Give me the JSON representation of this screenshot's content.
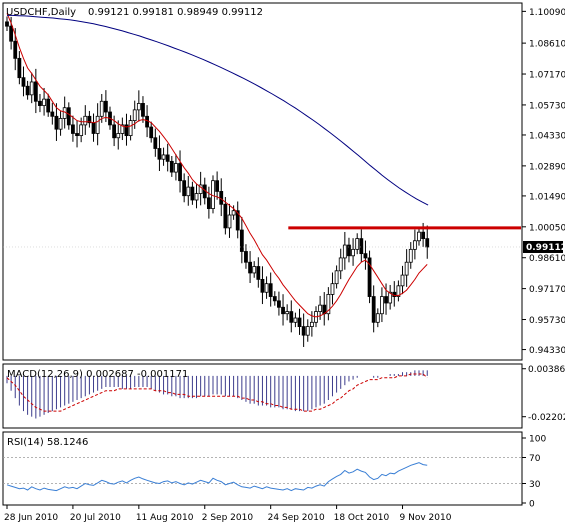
{
  "chart_data": [
    {
      "type": "candlestick",
      "symbol_label": "USDCHF,Daily",
      "ohlc_label": "0.99121 0.99181 0.98949 0.99112",
      "last_price_label": "0.99112",
      "y_ticks": [
        "1.10090",
        "1.08610",
        "1.07170",
        "1.05730",
        "1.04330",
        "1.02890",
        "1.01490",
        "1.00050",
        "0.98610",
        "0.97170",
        "0.95730",
        "0.94330"
      ],
      "y_tick_values": [
        1.1009,
        1.0861,
        1.0717,
        1.0573,
        1.0433,
        1.0289,
        1.0149,
        1.0005,
        0.9861,
        0.9717,
        0.9573,
        0.9433
      ],
      "ylim": [
        0.9403,
        1.1034
      ],
      "x_ticks": [
        "28 Jun 2010",
        "20 Jul 2010",
        "11 Aug 2010",
        "2 Sep 2010",
        "24 Sep 2010",
        "18 Oct 2010",
        "9 Nov 2010"
      ],
      "x_tick_index": [
        0,
        16,
        32,
        48,
        64,
        80,
        96
      ],
      "bar_count": 103,
      "series": [
        {
          "name": "USDCHF",
          "close": [
            1.094,
            1.087,
            1.079,
            1.07,
            1.066,
            1.062,
            1.068,
            1.059,
            1.057,
            1.06,
            1.054,
            1.052,
            1.046,
            1.051,
            1.056,
            1.048,
            1.044,
            1.043,
            1.048,
            1.052,
            1.049,
            1.044,
            1.052,
            1.059,
            1.054,
            1.048,
            1.042,
            1.044,
            1.048,
            1.043,
            1.05,
            1.055,
            1.058,
            1.052,
            1.047,
            1.042,
            1.037,
            1.032,
            1.034,
            1.031,
            1.026,
            1.03,
            1.022,
            1.015,
            1.019,
            1.013,
            1.016,
            1.02,
            1.014,
            1.009,
            1.022,
            1.017,
            1.011,
            1.0,
            1.006,
            1.008,
            0.999,
            0.989,
            0.984,
            0.979,
            0.982,
            0.976,
            0.97,
            0.974,
            0.968,
            0.966,
            0.963,
            0.96,
            0.961,
            0.956,
            0.958,
            0.954,
            0.95,
            0.954,
            0.956,
            0.961,
            0.964,
            0.96,
            0.969,
            0.974,
            0.98,
            0.986,
            0.992,
            0.987,
            0.99,
            0.995,
            0.988,
            0.986,
            0.968,
            0.956,
            0.96,
            0.968,
            0.965,
            0.97,
            0.968,
            0.973,
            0.978,
            0.984,
            0.99,
            0.994,
            0.998,
            0.995,
            0.9911
          ]
        },
        {
          "name": "MA fast",
          "values": [
            1.1,
            1.0955,
            1.09,
            1.084,
            1.079,
            1.0745,
            1.072,
            1.069,
            1.066,
            1.064,
            1.062,
            1.059,
            1.056,
            1.0545,
            1.054,
            1.053,
            1.0515,
            1.05,
            1.0495,
            1.0495,
            1.0495,
            1.049,
            1.0495,
            1.051,
            1.0515,
            1.051,
            1.05,
            1.0485,
            1.0475,
            1.047,
            1.0475,
            1.0485,
            1.05,
            1.0505,
            1.05,
            1.049,
            1.047,
            1.045,
            1.0425,
            1.04,
            1.037,
            1.034,
            1.031,
            1.028,
            1.0255,
            1.0225,
            1.0205,
            1.019,
            1.0175,
            1.016,
            1.015,
            1.0145,
            1.0135,
            1.012,
            1.0105,
            1.009,
            1.007,
            1.0045,
            1.001,
            0.9975,
            0.9945,
            0.991,
            0.9875,
            0.985,
            0.982,
            0.979,
            0.9765,
            0.9735,
            0.971,
            0.9685,
            0.966,
            0.964,
            0.962,
            0.96,
            0.959,
            0.9585,
            0.959,
            0.96,
            0.9615,
            0.9635,
            0.966,
            0.969,
            0.9725,
            0.976,
            0.979,
            0.982,
            0.984,
            0.985,
            0.983,
            0.98,
            0.977,
            0.974,
            0.971,
            0.9695,
            0.9685,
            0.9685,
            0.9695,
            0.971,
            0.9735,
            0.976,
            0.979,
            0.981,
            0.983
          ]
        },
        {
          "name": "MA slow",
          "values": [
            1.099,
            1.099,
            1.0989,
            1.0988,
            1.0986,
            1.0984,
            1.0982,
            1.098,
            1.0978,
            1.0975,
            1.0972,
            1.0969,
            1.0965,
            1.0961,
            1.0956,
            1.0951,
            1.0945,
            1.0939,
            1.0932,
            1.0925,
            1.0918,
            1.091,
            1.0902,
            1.0894,
            1.0885,
            1.0876,
            1.0867,
            1.0858,
            1.0848,
            1.0838,
            1.0828,
            1.0818,
            1.0807,
            1.0796,
            1.0785,
            1.0773,
            1.0761,
            1.0749,
            1.0736,
            1.0723,
            1.071,
            1.0697,
            1.0683,
            1.0669,
            1.0654,
            1.0639,
            1.0624,
            1.0608,
            1.0592,
            1.0575,
            1.0558,
            1.054,
            1.0522,
            1.0503,
            1.0484,
            1.0464,
            1.0444,
            1.0423,
            1.0402,
            1.038,
            1.0358,
            1.0336,
            1.0313,
            1.029,
            1.0268,
            1.0246,
            1.0225,
            1.0205,
            1.0186,
            1.0168,
            1.0151,
            1.0135,
            1.012,
            1.0106
          ]
        },
        {
          "name": "Resistance",
          "values": [
            1.0
          ]
        }
      ],
      "ma_slow_start_index": 0,
      "resistance_from_index": 61
    },
    {
      "type": "histogram",
      "label": "MACD(12,26,9) 0.002687 -0.001171",
      "y_ticks": [
        "0.003863",
        "-0.02202"
      ],
      "y_tick_values": [
        0.003863,
        -0.02202
      ],
      "ylim": [
        -0.0265,
        0.0048
      ],
      "series": [
        {
          "name": "MACD",
          "values": [
            -0.004,
            -0.008,
            -0.012,
            -0.016,
            -0.019,
            -0.021,
            -0.022,
            -0.023,
            -0.022,
            -0.021,
            -0.02,
            -0.019,
            -0.018,
            -0.017,
            -0.016,
            -0.015,
            -0.014,
            -0.013,
            -0.012,
            -0.011,
            -0.01,
            -0.009,
            -0.008,
            -0.007,
            -0.006,
            -0.006,
            -0.006,
            -0.006,
            -0.007,
            -0.007,
            -0.007,
            -0.006,
            -0.006,
            -0.006,
            -0.006,
            -0.007,
            -0.008,
            -0.009,
            -0.01,
            -0.01,
            -0.011,
            -0.011,
            -0.012,
            -0.012,
            -0.012,
            -0.012,
            -0.012,
            -0.011,
            -0.011,
            -0.011,
            -0.01,
            -0.01,
            -0.01,
            -0.011,
            -0.011,
            -0.011,
            -0.012,
            -0.013,
            -0.014,
            -0.015,
            -0.015,
            -0.016,
            -0.016,
            -0.016,
            -0.017,
            -0.017,
            -0.017,
            -0.018,
            -0.018,
            -0.018,
            -0.019,
            -0.019,
            -0.019,
            -0.019,
            -0.018,
            -0.017,
            -0.016,
            -0.015,
            -0.013,
            -0.011,
            -0.009,
            -0.007,
            -0.005,
            -0.003,
            -0.002,
            -0.001,
            0.0,
            0.0,
            0.0,
            -0.001,
            -0.001,
            0.0,
            0.0,
            0.001,
            0.001,
            0.001,
            0.002,
            0.002,
            0.002,
            0.003,
            0.003,
            0.003,
            0.003
          ]
        },
        {
          "name": "Signal",
          "values": [
            -0.001,
            -0.003,
            -0.005,
            -0.008,
            -0.011,
            -0.013,
            -0.015,
            -0.017,
            -0.018,
            -0.019,
            -0.019,
            -0.019,
            -0.019,
            -0.019,
            -0.018,
            -0.017,
            -0.016,
            -0.015,
            -0.014,
            -0.013,
            -0.012,
            -0.011,
            -0.01,
            -0.009,
            -0.008,
            -0.008,
            -0.008,
            -0.007,
            -0.007,
            -0.007,
            -0.007,
            -0.007,
            -0.007,
            -0.007,
            -0.007,
            -0.007,
            -0.008,
            -0.008,
            -0.008,
            -0.009,
            -0.009,
            -0.01,
            -0.01,
            -0.01,
            -0.011,
            -0.011,
            -0.011,
            -0.011,
            -0.011,
            -0.011,
            -0.011,
            -0.011,
            -0.011,
            -0.011,
            -0.011,
            -0.011,
            -0.011,
            -0.012,
            -0.012,
            -0.013,
            -0.013,
            -0.014,
            -0.014,
            -0.015,
            -0.015,
            -0.016,
            -0.016,
            -0.017,
            -0.017,
            -0.018,
            -0.018,
            -0.018,
            -0.019,
            -0.019,
            -0.019,
            -0.018,
            -0.018,
            -0.017,
            -0.016,
            -0.015,
            -0.013,
            -0.012,
            -0.01,
            -0.008,
            -0.007,
            -0.005,
            -0.004,
            -0.003,
            -0.002,
            -0.002,
            -0.002,
            -0.001,
            -0.001,
            -0.001,
            -0.001,
            0.0,
            0.0,
            0.0,
            0.001,
            0.001,
            0.001,
            0.001,
            -0.001
          ]
        }
      ]
    },
    {
      "type": "line",
      "label": "RSI(14) 58.1246",
      "y_ticks": [
        "100",
        "70",
        "30",
        "0"
      ],
      "y_tick_values": [
        100,
        70,
        30,
        0
      ],
      "ylim": [
        0,
        100
      ],
      "levels": [
        70,
        30
      ],
      "series": [
        {
          "name": "RSI",
          "values": [
            28,
            26,
            24,
            22,
            23,
            20,
            25,
            22,
            20,
            23,
            21,
            20,
            19,
            22,
            25,
            23,
            24,
            22,
            26,
            30,
            28,
            27,
            31,
            35,
            33,
            30,
            29,
            32,
            34,
            31,
            35,
            38,
            40,
            37,
            35,
            33,
            31,
            30,
            33,
            34,
            31,
            33,
            30,
            28,
            31,
            29,
            32,
            35,
            33,
            31,
            38,
            35,
            33,
            28,
            30,
            32,
            28,
            25,
            24,
            23,
            26,
            24,
            22,
            25,
            23,
            22,
            21,
            20,
            22,
            19,
            22,
            21,
            20,
            24,
            23,
            26,
            28,
            26,
            33,
            37,
            41,
            44,
            50,
            46,
            48,
            52,
            49,
            47,
            40,
            36,
            38,
            44,
            42,
            46,
            45,
            49,
            52,
            55,
            58,
            60,
            62,
            59,
            58
          ]
        }
      ]
    }
  ],
  "colors": {
    "bull_candle": "#ffffff",
    "bear_candle": "#000000",
    "candle_outline": "#000000",
    "ma_fast": "#cc0000",
    "ma_slow": "#000080",
    "resistance": "#cc0000",
    "macd_histogram": "#3c3c8c",
    "macd_signal": "#cc0000",
    "rsi_line": "#3a7fd5",
    "level_line": "#9a9a9a",
    "price_tag_bg": "#000000",
    "price_tag_text": "#ffffff"
  }
}
